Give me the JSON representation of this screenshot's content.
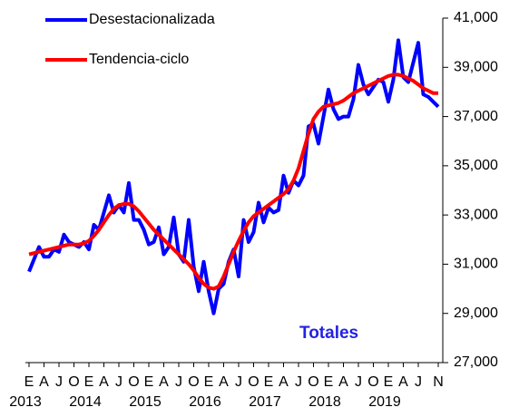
{
  "chart_data": {
    "type": "line",
    "annotation": "Totales",
    "categories": [
      "E",
      null,
      null,
      "A",
      null,
      null,
      "J",
      null,
      null,
      "O",
      null,
      null,
      "E",
      null,
      null,
      "A",
      null,
      null,
      "J",
      null,
      null,
      "O",
      null,
      null,
      "E",
      null,
      null,
      "A",
      null,
      null,
      "J",
      null,
      null,
      "O",
      null,
      null,
      "E",
      null,
      null,
      "A",
      null,
      null,
      "J",
      null,
      null,
      "O",
      null,
      null,
      "E",
      null,
      null,
      "A",
      null,
      null,
      "J",
      null,
      null,
      "O",
      null,
      null,
      "E",
      null,
      null,
      "A",
      null,
      null,
      "J",
      null,
      null,
      "O",
      null,
      null,
      "E",
      null,
      null,
      "A",
      null,
      null,
      "J",
      null,
      null,
      null,
      "N"
    ],
    "years": [
      "2013",
      "2014",
      "2015",
      "2016",
      "2017",
      "2018",
      "2019"
    ],
    "series": [
      {
        "name": "Desestacionalizada",
        "color": "#0000ff",
        "values": [
          30700,
          31200,
          31700,
          31300,
          31300,
          31600,
          31500,
          32200,
          31900,
          31800,
          31700,
          31900,
          31600,
          32600,
          32400,
          33100,
          33800,
          33100,
          33400,
          33100,
          34300,
          32800,
          32800,
          32400,
          31800,
          31900,
          32500,
          31400,
          31700,
          32900,
          31400,
          31100,
          32800,
          30900,
          29900,
          31100,
          29900,
          29000,
          30000,
          30200,
          31100,
          31600,
          30500,
          32800,
          31900,
          32300,
          33500,
          32700,
          33300,
          33100,
          33200,
          34600,
          33900,
          34400,
          34200,
          34600,
          36600,
          36700,
          35900,
          37000,
          38100,
          37300,
          36900,
          37000,
          37000,
          37700,
          39100,
          38300,
          37900,
          38200,
          38500,
          38400,
          37600,
          38500,
          40100,
          38600,
          38400,
          39200,
          40000,
          37900,
          37800,
          37600,
          37400
        ]
      },
      {
        "name": "Tendencia-ciclo",
        "color": "#ff0000",
        "values": [
          31400,
          31450,
          31500,
          31550,
          31600,
          31650,
          31700,
          31750,
          31800,
          31800,
          31800,
          31850,
          31950,
          32150,
          32400,
          32700,
          33000,
          33250,
          33400,
          33450,
          33450,
          33350,
          33150,
          32900,
          32650,
          32400,
          32200,
          32000,
          31800,
          31600,
          31400,
          31200,
          31000,
          30750,
          30450,
          30200,
          30050,
          30000,
          30100,
          30500,
          31000,
          31500,
          31950,
          32350,
          32700,
          32950,
          33100,
          33250,
          33400,
          33550,
          33700,
          33850,
          34050,
          34400,
          34900,
          35600,
          36300,
          36900,
          37200,
          37400,
          37450,
          37500,
          37550,
          37650,
          37800,
          37950,
          38050,
          38150,
          38250,
          38350,
          38450,
          38550,
          38650,
          38700,
          38700,
          38650,
          38550,
          38450,
          38300,
          38150,
          38050,
          37950,
          37950
        ]
      }
    ],
    "ylim": [
      27000,
      41000
    ],
    "yticks": [
      {
        "value": 27000,
        "label": "27,000"
      },
      {
        "value": 29000,
        "label": "29,000"
      },
      {
        "value": 31000,
        "label": "31,000"
      },
      {
        "value": 33000,
        "label": "33,000"
      },
      {
        "value": 35000,
        "label": "35,000"
      },
      {
        "value": 37000,
        "label": "37,000"
      },
      {
        "value": 39000,
        "label": "39,000"
      },
      {
        "value": 41000,
        "label": "41,000"
      }
    ]
  }
}
